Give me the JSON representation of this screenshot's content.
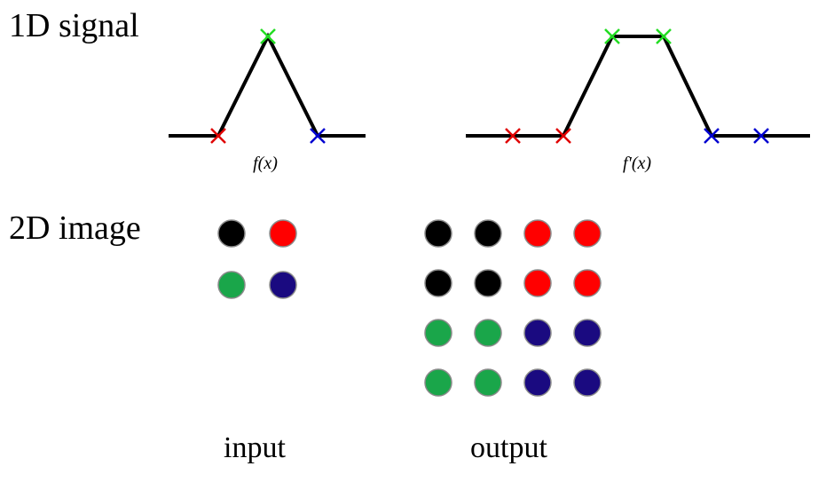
{
  "labels": {
    "signal_row": "1D signal",
    "image_row": "2D image",
    "input_caption": "input",
    "output_caption": "output",
    "func_input": "f(x)",
    "func_output": "f'(x)"
  },
  "colors": {
    "black": "#000000",
    "red": "#ff0000",
    "green": "#1aa64a",
    "navy": "#1a0a80",
    "marker_red": "#e00000",
    "marker_green": "#22dd22",
    "marker_blue": "#0000d0",
    "line": "#000000"
  },
  "signal_input": {
    "markers": [
      "red",
      "green",
      "blue"
    ]
  },
  "signal_output": {
    "markers": [
      "red",
      "red",
      "green",
      "green",
      "blue",
      "blue"
    ]
  },
  "image_input": {
    "grid": [
      [
        "black",
        "red"
      ],
      [
        "green",
        "navy"
      ]
    ]
  },
  "image_output": {
    "grid": [
      [
        "black",
        "black",
        "red",
        "red"
      ],
      [
        "black",
        "black",
        "red",
        "red"
      ],
      [
        "green",
        "green",
        "navy",
        "navy"
      ],
      [
        "green",
        "green",
        "navy",
        "navy"
      ]
    ]
  }
}
